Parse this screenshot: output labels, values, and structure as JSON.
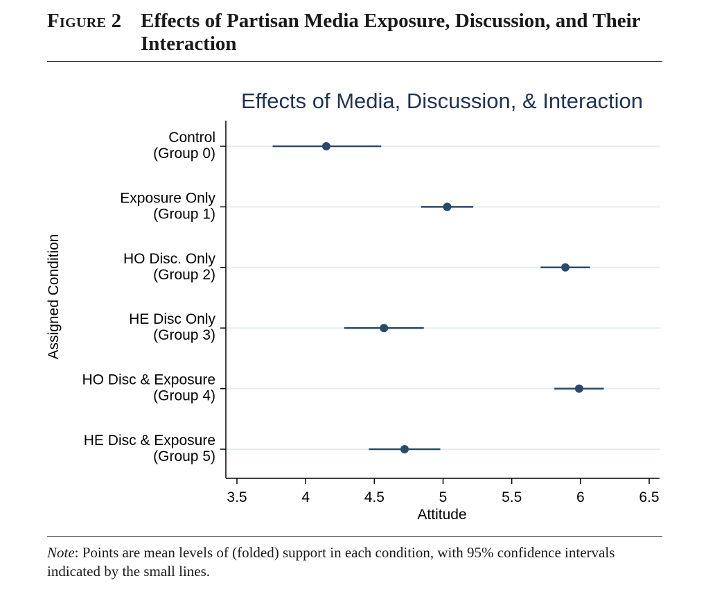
{
  "figure": {
    "label": "Figure 2",
    "title": "Effects of Partisan Media Exposure, Discussion, and Their Interaction",
    "note_label": "Note",
    "note_text": ": Points are mean levels of (folded) support in each condition, with 95% confidence intervals indicated by the small lines."
  },
  "chart_data": {
    "type": "scatter",
    "title": "Effects of Media, Discussion, & Interaction",
    "xlabel": "Attitude",
    "ylabel": "Assigned Condition",
    "xlim": [
      3.5,
      6.5
    ],
    "xticks": [
      3.5,
      4,
      4.5,
      5,
      5.5,
      6,
      6.5
    ],
    "grid": true,
    "colors": {
      "marker": "#2b4a6b",
      "grid": "#e3ecef",
      "title": "#1f3350"
    },
    "categories": [
      {
        "line1": "Control",
        "line2": "(Group 0)",
        "mean": 4.15,
        "ci_low": 3.76,
        "ci_high": 4.55
      },
      {
        "line1": "Exposure Only",
        "line2": "(Group 1)",
        "mean": 5.03,
        "ci_low": 4.84,
        "ci_high": 5.22
      },
      {
        "line1": "HO Disc. Only",
        "line2": "(Group 2)",
        "mean": 5.89,
        "ci_low": 5.71,
        "ci_high": 6.07
      },
      {
        "line1": "HE Disc Only",
        "line2": "(Group 3)",
        "mean": 4.57,
        "ci_low": 4.28,
        "ci_high": 4.86
      },
      {
        "line1": "HO Disc & Exposure",
        "line2": "(Group 4)",
        "mean": 5.99,
        "ci_low": 5.81,
        "ci_high": 6.17
      },
      {
        "line1": "HE Disc & Exposure",
        "line2": "(Group 5)",
        "mean": 4.72,
        "ci_low": 4.46,
        "ci_high": 4.98
      }
    ]
  }
}
